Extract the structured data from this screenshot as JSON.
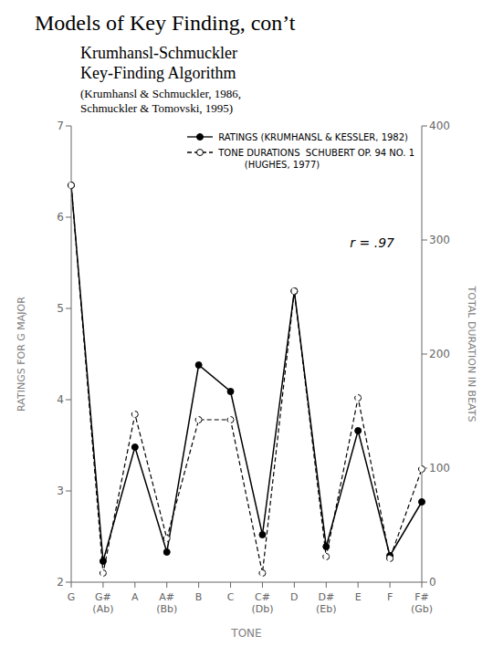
{
  "chart_data": {
    "type": "line",
    "title": "Models of Key Finding, con’t",
    "subtitle": [
      "Krumhansl-Schmuckler",
      "Key-Finding Algorithm",
      "(Krumhansl & Schmuckler, 1986,",
      "Schmuckler & Tomovski, 1995)"
    ],
    "categories": [
      "G",
      "G#\n(Ab)",
      "A",
      "A#\n(Bb)",
      "B",
      "C",
      "C#\n(Db)",
      "D",
      "D#\n(Eb)",
      "E",
      "F",
      "F#\n(Gb)"
    ],
    "series": [
      {
        "name": "RATINGS (KRUMHANSL & KESSLER, 1982)",
        "color": "#000000",
        "line_style": "solid",
        "marker": "circle",
        "values": [
          6.35,
          2.23,
          3.48,
          2.33,
          4.38,
          4.09,
          2.52,
          5.19,
          2.39,
          3.66,
          2.29,
          2.88
        ]
      },
      {
        "name": "TONE DURATIONS  SCHUBERT OP. 94 NO. 1\n         (HUGHES, 1977)",
        "color": "#000000",
        "line_style": "dashed",
        "marker": "circle",
        "values": [
          6.35,
          2.1,
          3.84,
          2.48,
          3.78,
          3.78,
          2.1,
          5.19,
          2.28,
          4.02,
          2.26,
          3.24
        ]
      }
    ],
    "xlabel": "TONE",
    "ylabel": "RATINGS FOR G MAJOR",
    "y2label": "TOTAL DURATION IN BEATS",
    "ylim": [
      2.0,
      7.0
    ],
    "yticks": [
      2,
      3,
      4,
      5,
      6,
      7
    ],
    "y2lim": [
      0,
      400
    ],
    "y2ticks": [
      0,
      100,
      200,
      300,
      400
    ],
    "annotation": "r = .97",
    "legend": "upper right",
    "grid": false
  }
}
